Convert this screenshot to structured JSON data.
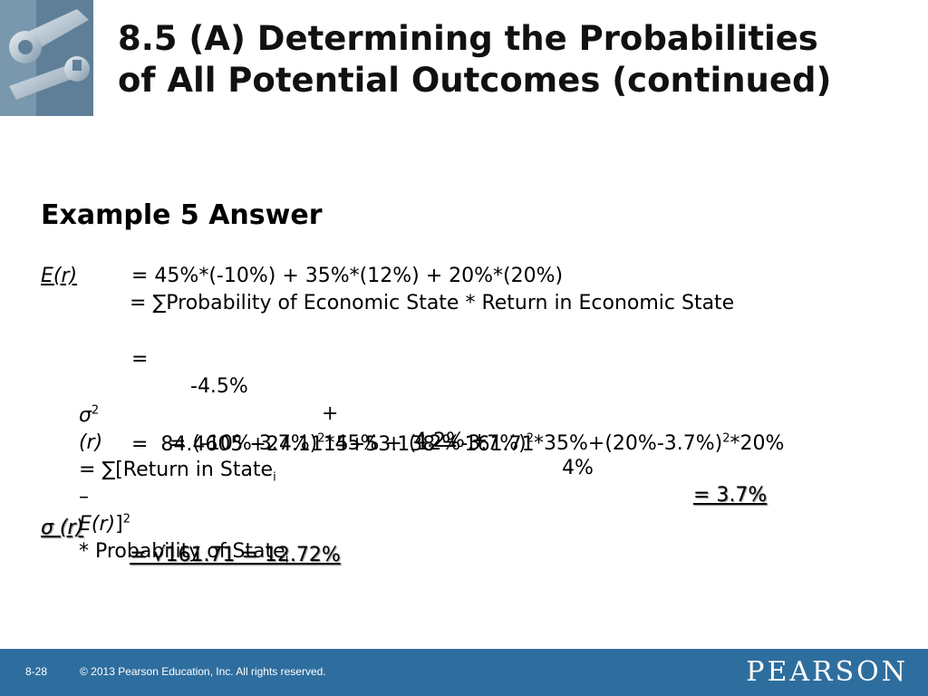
{
  "slide": {
    "title_line1": "8.5 (A)  Determining the Probabilities",
    "title_line2": "of All Potential Outcomes (continued)",
    "heading": "Example 5 Answer",
    "er_label": "E(r)",
    "er_def": "= ∑Probability of Economic State * Return in Economic State",
    "er_line2": "= 45%*(-10%) + 35%*(12%) + 20%*(20%)",
    "er_line3_eq": "=",
    "er_line3_t1": "-4.5%",
    "er_line3_p1": "+",
    "er_line3_t2": "4.2% +",
    "er_line3_t3": "4%",
    "er_result": "= 3.7%",
    "var_sigma": "σ",
    "var_exp": "2",
    "var_r": "(r)",
    "var_def_a": "= ∑[Return in State",
    "var_sub_i": "i",
    "var_def_b": "–",
    "var_def_er": "E(r)",
    "var_def_c": "]",
    "var_def_d": "* Probability of State",
    "var_line2_a": "= (-10%-3.7%)",
    "var_line2_b": "*45% + (12%-3.7%)",
    "var_line2_c": "*35%+(20%-3.7%)",
    "var_line2_d": "*20%",
    "var_line3": "=  84.4605 +24.1115+53.138 = 161.71",
    "sd_label": "σ (r)",
    "sd_result": "= √161.71 = 12.72%"
  },
  "footer": {
    "page": "8-28",
    "copyright": "© 2013 Pearson Education, Inc. All rights reserved.",
    "logo": "PEARSON"
  },
  "colors": {
    "footer_bg": "#2e6e9e",
    "text": "#000000"
  },
  "icons": {
    "corner": "wrench-icon"
  }
}
